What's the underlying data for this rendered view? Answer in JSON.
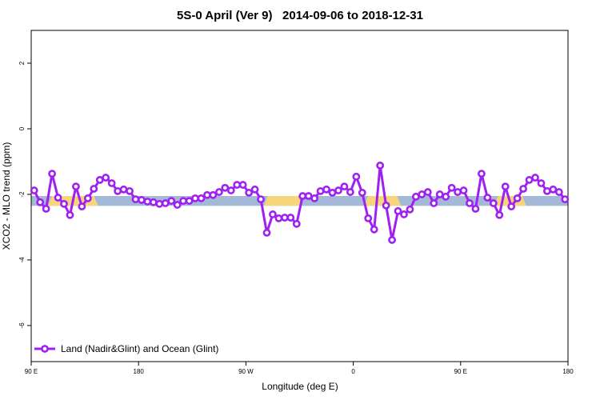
{
  "chart_data": {
    "type": "line",
    "title": "5S-0 April (Ver 9)   2014-09-06 to 2018-12-31",
    "x_label": "Longitude (deg E)",
    "y_label": "XCO2 - MLO trend (ppm)",
    "xlim": [
      90,
      540
    ],
    "ylim": [
      -7.1,
      3.0
    ],
    "xticks": [
      {
        "value": 90,
        "label": "90 E"
      },
      180,
      {
        "value": 270,
        "label": "90 W"
      },
      {
        "value": 360,
        "label": "0"
      },
      {
        "value": 450,
        "label": "90 E"
      },
      {
        "value": 540,
        "label": "180"
      }
    ],
    "yticks": [
      -6,
      -4,
      -2,
      0,
      2
    ],
    "legend": "bottom-left",
    "band": {
      "lower": -2.35,
      "upper": -2.05,
      "color": "#a4b9d8"
    },
    "highlights": [
      {
        "xlim": [
          104,
          146
        ],
        "color": "#f7d679"
      },
      {
        "xlim": [
          285,
          317
        ],
        "color": "#f7d679"
      },
      {
        "xlim": [
          369,
          400
        ],
        "color": "#f7d679"
      },
      {
        "xlim": [
          478,
          505
        ],
        "color": "#f7d679"
      }
    ],
    "x": [
      92.5,
      97.5,
      102.5,
      107.5,
      112.5,
      117.5,
      122.5,
      127.5,
      132.5,
      137.5,
      142.5,
      147.5,
      152.5,
      157.5,
      162.5,
      167.5,
      172.5,
      177.5,
      182.5,
      187.5,
      192.5,
      197.5,
      202.5,
      207.5,
      212.5,
      217.5,
      222.5,
      227.5,
      232.5,
      237.5,
      242.5,
      247.5,
      252.5,
      257.5,
      262.5,
      267.5,
      272.5,
      277.5,
      282.5,
      287.5,
      292.5,
      297.5,
      302.5,
      307.5,
      312.5,
      317.5,
      322.5,
      327.5,
      332.5,
      337.5,
      342.5,
      347.5,
      352.5,
      357.5,
      362.5,
      367.5,
      372.5,
      377.5,
      382.5,
      387.5,
      392.5,
      397.5,
      402.5,
      407.5,
      412.5,
      417.5,
      422.5,
      427.5,
      432.5,
      437.5,
      442.5,
      447.5,
      452.5,
      457.5,
      462.5,
      467.5,
      472.5,
      477.5,
      482.5,
      487.5,
      492.5,
      497.5,
      502.5,
      507.5,
      512.5,
      517.5,
      522.5,
      527.5,
      532.5,
      537.5
    ],
    "series": [
      {
        "name": "Land (Nadir&Glint) and Ocean (Glint)",
        "color": "#a020f0",
        "values": [
          -1.88,
          -2.24,
          -2.44,
          -1.37,
          -2.1,
          -2.29,
          -2.63,
          -1.76,
          -2.37,
          -2.12,
          -1.83,
          -1.56,
          -1.49,
          -1.66,
          -1.9,
          -1.85,
          -1.9,
          -2.15,
          -2.17,
          -2.22,
          -2.24,
          -2.29,
          -2.27,
          -2.2,
          -2.32,
          -2.2,
          -2.2,
          -2.12,
          -2.12,
          -2.02,
          -2.02,
          -1.93,
          -1.8,
          -1.88,
          -1.71,
          -1.71,
          -1.95,
          -1.85,
          -2.15,
          -3.17,
          -2.61,
          -2.73,
          -2.71,
          -2.71,
          -2.9,
          -2.05,
          -2.05,
          -2.12,
          -1.9,
          -1.85,
          -1.95,
          -1.88,
          -1.76,
          -1.93,
          -1.46,
          -1.95,
          -2.73,
          -3.07,
          -1.12,
          -2.34,
          -3.39,
          -2.51,
          -2.61,
          -2.46,
          -2.07,
          -2.0,
          -1.93,
          -2.27,
          -2.0,
          -2.07,
          -1.8,
          -1.93,
          -1.88,
          -2.27,
          -2.44,
          -1.37,
          -2.1,
          -2.27,
          -2.63,
          -1.76,
          -2.37,
          -2.12,
          -1.83,
          -1.56,
          -1.49,
          -1.66,
          -1.9,
          -1.85,
          -1.93,
          -2.15
        ]
      }
    ]
  }
}
